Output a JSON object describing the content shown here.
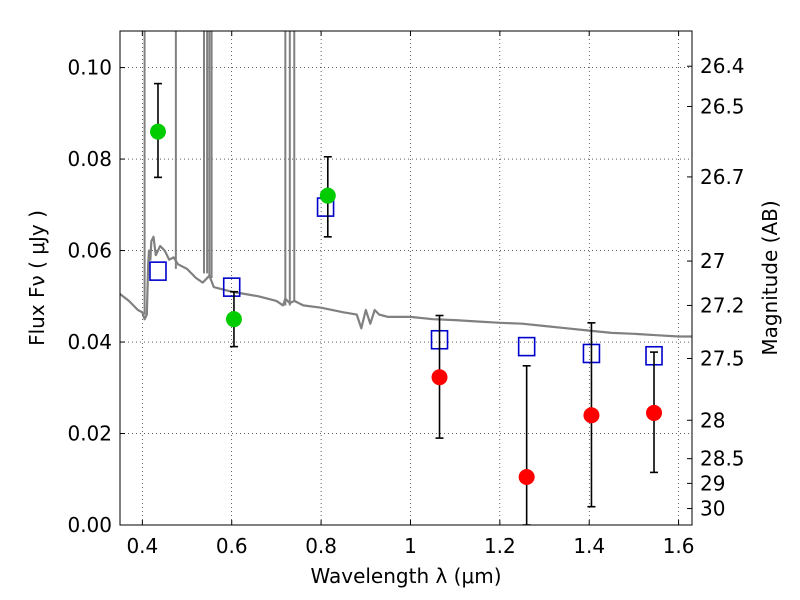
{
  "chart_data": {
    "type": "scatter",
    "xlabel": "Wavelength  λ (μm)",
    "ylabel": "Flux  Fν  ( μJy )",
    "ylabel_right": "Magnitude (AB)",
    "xlim": [
      0.35,
      1.63
    ],
    "ylim": [
      0.0,
      0.108
    ],
    "grid": true,
    "x_ticks": [
      0.4,
      0.6,
      0.8,
      1.0,
      1.2,
      1.4,
      1.6
    ],
    "x_tick_labels": [
      "0.4",
      "0.6",
      "0.8",
      "1",
      "1.2",
      "1.4",
      "1.6"
    ],
    "y_ticks": [
      0.0,
      0.02,
      0.04,
      0.06,
      0.08,
      0.1
    ],
    "y_tick_labels": [
      "0.00",
      "0.02",
      "0.04",
      "0.06",
      "0.08",
      "0.10"
    ],
    "right_axis_ticks": [
      {
        "label": "26.4",
        "flux": 0.1003
      },
      {
        "label": "26.5",
        "flux": 0.0915
      },
      {
        "label": "26.7",
        "flux": 0.0761
      },
      {
        "label": "27",
        "flux": 0.0577
      },
      {
        "label": "27.2",
        "flux": 0.048
      },
      {
        "label": "27.5",
        "flux": 0.0364
      },
      {
        "label": "28",
        "flux": 0.0229
      },
      {
        "label": "28.5",
        "flux": 0.0145
      },
      {
        "label": "29",
        "flux": 0.0091
      },
      {
        "label": "30",
        "flux": 0.0036
      }
    ],
    "series": [
      {
        "kind": "line",
        "color": "#808080",
        "x": [
          0.35,
          0.37,
          0.39,
          0.4,
          0.405,
          0.41,
          0.413,
          0.415,
          0.418,
          0.42,
          0.425,
          0.43,
          0.44,
          0.45,
          0.46,
          0.47,
          0.48,
          0.5,
          0.52,
          0.535,
          0.55,
          0.56,
          0.58,
          0.6,
          0.63,
          0.66,
          0.7,
          0.715,
          0.72,
          0.73,
          0.74,
          0.76,
          0.8,
          0.85,
          0.88,
          0.89,
          0.9,
          0.91,
          0.92,
          0.93,
          0.95,
          1.0,
          1.05,
          1.1,
          1.15,
          1.2,
          1.25,
          1.3,
          1.35,
          1.4,
          1.45,
          1.5,
          1.55,
          1.6,
          1.63
        ],
        "y": [
          0.0505,
          0.049,
          0.047,
          0.0465,
          0.045,
          0.046,
          0.057,
          0.06,
          0.058,
          0.062,
          0.063,
          0.059,
          0.061,
          0.06,
          0.058,
          0.0585,
          0.057,
          0.056,
          0.054,
          0.053,
          0.0545,
          0.052,
          0.0515,
          0.051,
          0.0505,
          0.05,
          0.049,
          0.048,
          0.0495,
          0.0485,
          0.049,
          0.048,
          0.0475,
          0.0465,
          0.046,
          0.043,
          0.047,
          0.044,
          0.047,
          0.046,
          0.0455,
          0.0455,
          0.045,
          0.0448,
          0.0445,
          0.0442,
          0.044,
          0.0435,
          0.043,
          0.0425,
          0.042,
          0.0418,
          0.0415,
          0.0412,
          0.0412
        ]
      },
      {
        "kind": "spikes",
        "color": "#808080",
        "x": [
          0.405,
          0.475,
          0.538,
          0.545,
          0.55,
          0.555,
          0.72,
          0.73,
          0.74
        ],
        "base": [
          0.046,
          0.056,
          0.055,
          0.055,
          0.054,
          0.054,
          0.048,
          0.048,
          0.049
        ]
      },
      {
        "kind": "open_square",
        "color": "#0000cc",
        "x": [
          0.435,
          0.6,
          0.81,
          1.065,
          1.26,
          1.405,
          1.545
        ],
        "y": [
          0.0555,
          0.052,
          0.0695,
          0.0405,
          0.039,
          0.0375,
          0.037
        ]
      },
      {
        "kind": "filled_circle_errorbar",
        "color": "#00cc00",
        "x": [
          0.435,
          0.605,
          0.815
        ],
        "y": [
          0.086,
          0.045,
          0.072
        ],
        "yerr_low": [
          0.076,
          0.039,
          0.063
        ],
        "yerr_high": [
          0.0965,
          0.051,
          0.0805
        ]
      },
      {
        "kind": "filled_circle_errorbar",
        "color": "#ff0000",
        "x": [
          1.065,
          1.26,
          1.405,
          1.545
        ],
        "y": [
          0.0323,
          0.0105,
          0.024,
          0.0245
        ],
        "yerr_low": [
          0.019,
          0.0,
          0.004,
          0.0115
        ],
        "yerr_high": [
          0.0458,
          0.0348,
          0.0442,
          0.0378
        ]
      }
    ]
  }
}
